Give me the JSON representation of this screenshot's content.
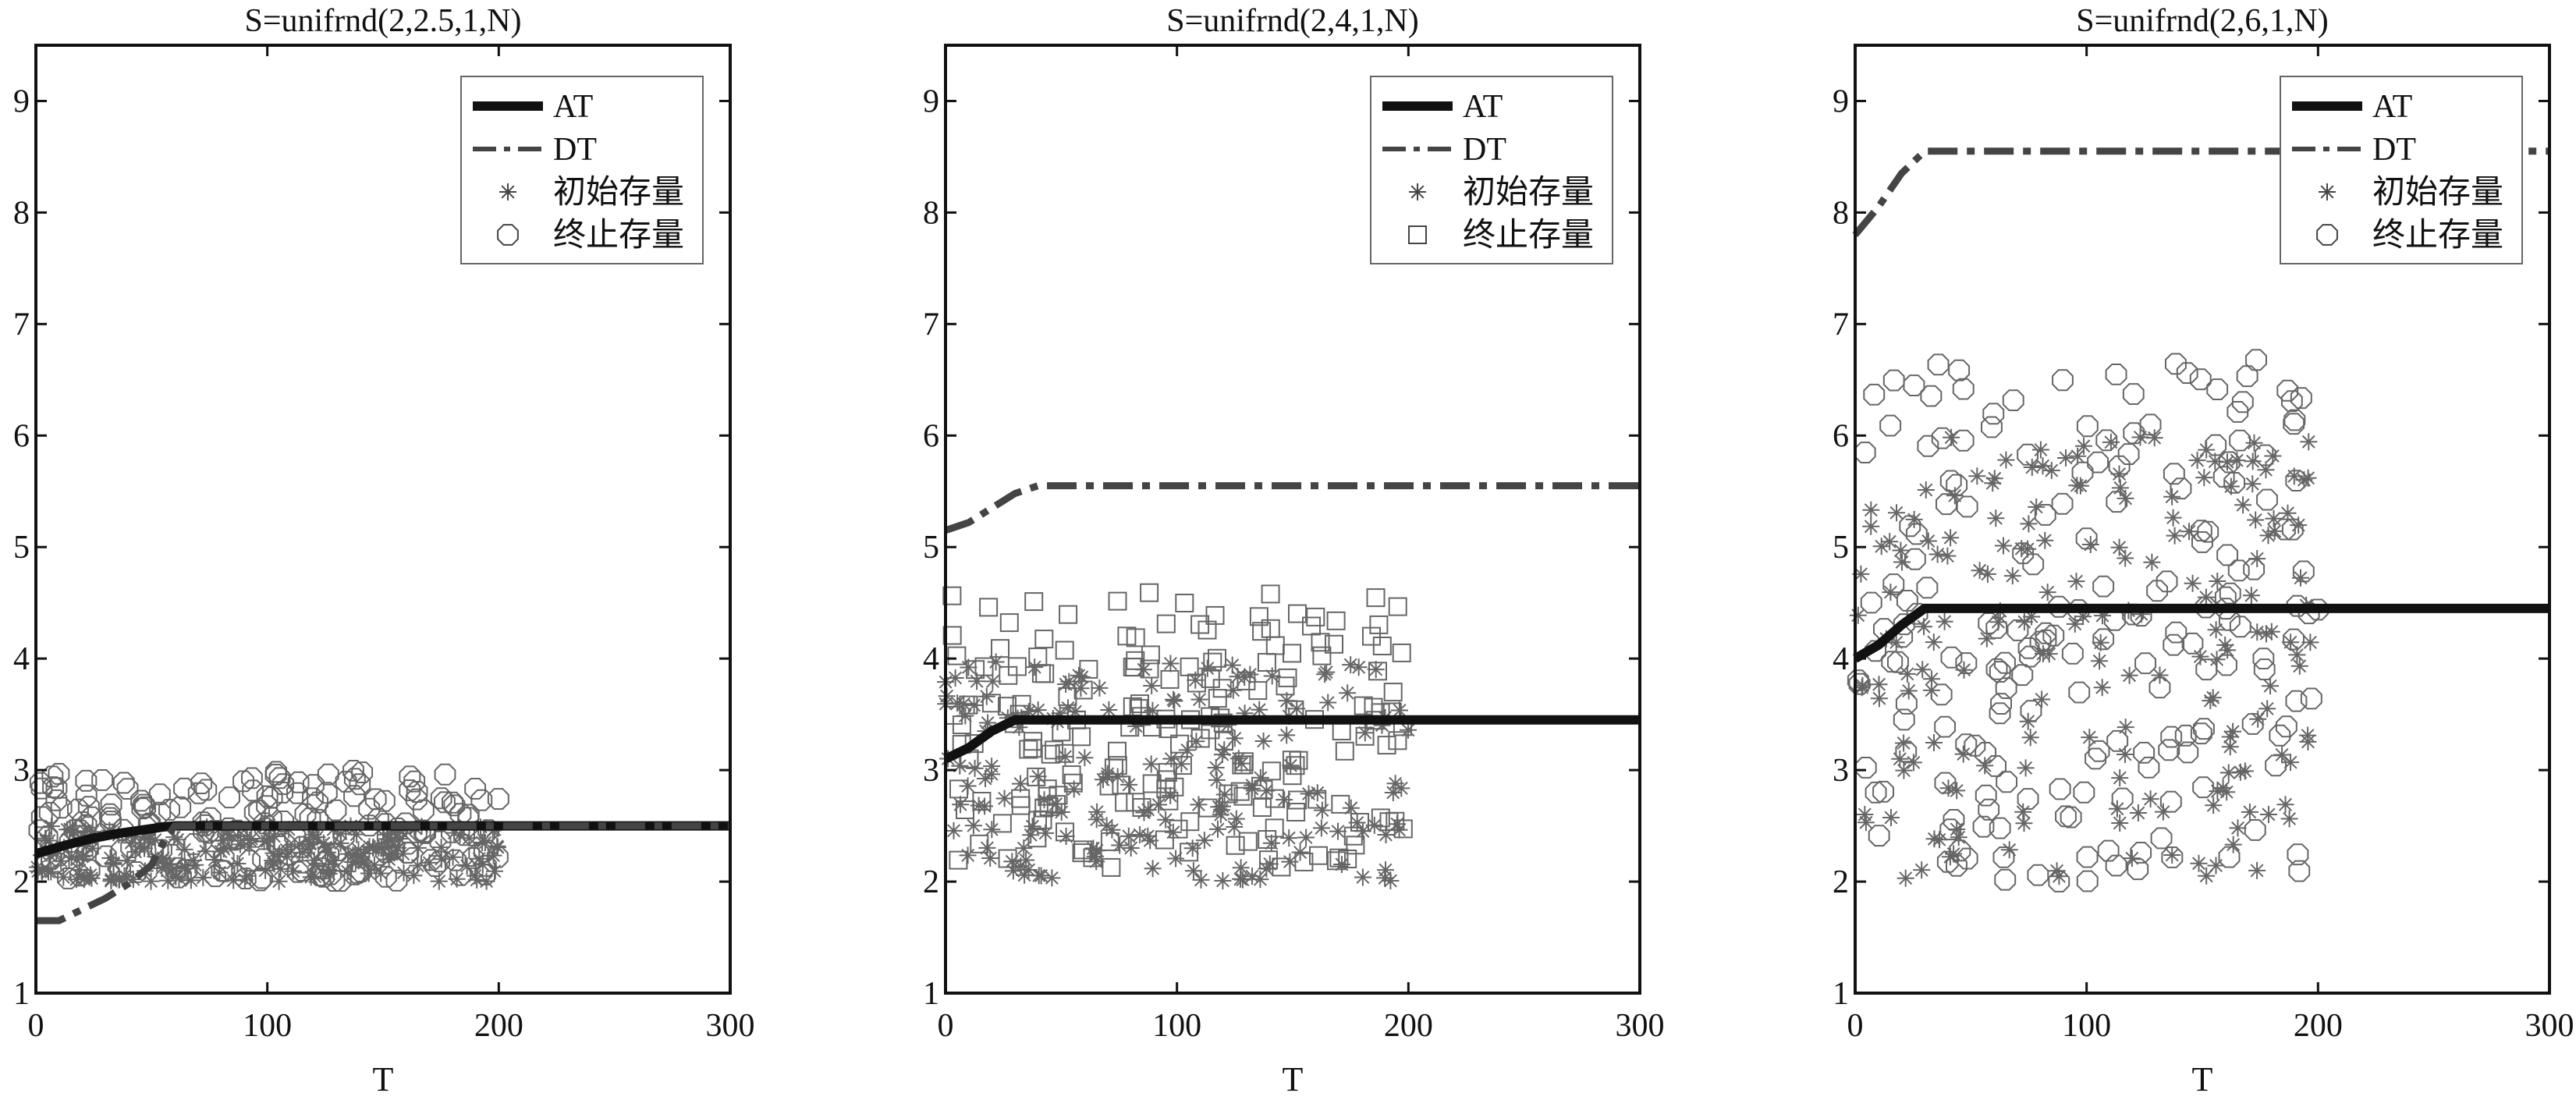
{
  "chart_data": [
    {
      "type": "scatter",
      "title": "S=unifrnd(2,2.5,1,N)",
      "xlabel": "T",
      "ylabel": "",
      "xlim": [
        0,
        300
      ],
      "ylim": [
        1,
        9.5
      ],
      "xticks": [
        0,
        100,
        200,
        300
      ],
      "yticks": [
        1,
        2,
        3,
        4,
        5,
        6,
        7,
        8,
        9
      ],
      "legend_position": "top-right",
      "legend": [
        "AT",
        "DT",
        "初始存量",
        "终止存量"
      ],
      "n_points": 200,
      "series": [
        {
          "name": "AT",
          "style": "solid-thick",
          "color": "#111111",
          "x": [
            0,
            5,
            15,
            25,
            35,
            45,
            55,
            60,
            300
          ],
          "y": [
            2.25,
            2.28,
            2.34,
            2.39,
            2.43,
            2.46,
            2.49,
            2.5,
            2.5
          ]
        },
        {
          "name": "DT",
          "style": "dash-dot",
          "color": "#444444",
          "x": [
            0,
            10,
            15,
            20,
            30,
            40,
            50,
            55,
            60,
            300
          ],
          "y": [
            1.65,
            1.65,
            1.7,
            1.75,
            1.85,
            1.98,
            2.15,
            2.35,
            2.5,
            2.5
          ]
        },
        {
          "name": "初始存量",
          "marker": "asterisk",
          "color": "#666666",
          "x_range": [
            0,
            200
          ],
          "y_range": [
            2.0,
            2.5
          ]
        },
        {
          "name": "终止存量",
          "marker": "octagon",
          "color": "#666666",
          "x_range": [
            0,
            200
          ],
          "y_range": [
            2.0,
            3.0
          ]
        }
      ]
    },
    {
      "type": "scatter",
      "title": "S=unifrnd(2,4,1,N)",
      "xlabel": "T",
      "ylabel": "",
      "xlim": [
        0,
        300
      ],
      "ylim": [
        1,
        9.5
      ],
      "xticks": [
        0,
        100,
        200,
        300
      ],
      "yticks": [
        1,
        2,
        3,
        4,
        5,
        6,
        7,
        8,
        9
      ],
      "legend_position": "top-right",
      "legend": [
        "AT",
        "DT",
        "初始存量",
        "终止存量"
      ],
      "n_points": 200,
      "series": [
        {
          "name": "AT",
          "style": "solid-thick",
          "color": "#111111",
          "x": [
            0,
            10,
            20,
            30,
            300
          ],
          "y": [
            3.1,
            3.2,
            3.35,
            3.45,
            3.45
          ]
        },
        {
          "name": "DT",
          "style": "dash-dot",
          "color": "#444444",
          "x": [
            0,
            10,
            20,
            30,
            40,
            300
          ],
          "y": [
            5.15,
            5.22,
            5.35,
            5.48,
            5.55,
            5.55
          ]
        },
        {
          "name": "初始存量",
          "marker": "asterisk",
          "color": "#666666",
          "x_range": [
            0,
            200
          ],
          "y_range": [
            2.0,
            4.0
          ]
        },
        {
          "name": "终止存量",
          "marker": "square",
          "color": "#666666",
          "x_range": [
            0,
            200
          ],
          "y_range": [
            2.1,
            4.6
          ]
        }
      ]
    },
    {
      "type": "scatter",
      "title": "S=unifrnd(2,6,1,N)",
      "xlabel": "T",
      "ylabel": "",
      "xlim": [
        0,
        300
      ],
      "ylim": [
        1,
        9.5
      ],
      "xticks": [
        0,
        100,
        200,
        300
      ],
      "yticks": [
        1,
        2,
        3,
        4,
        5,
        6,
        7,
        8,
        9
      ],
      "legend_position": "top-right",
      "legend": [
        "AT",
        "DT",
        "初始存量",
        "终止存量"
      ],
      "n_points": 200,
      "series": [
        {
          "name": "AT",
          "style": "solid-thick",
          "color": "#111111",
          "x": [
            0,
            10,
            20,
            30,
            300
          ],
          "y": [
            4.0,
            4.12,
            4.3,
            4.45,
            4.45
          ]
        },
        {
          "name": "DT",
          "style": "dash-dot",
          "color": "#444444",
          "x": [
            0,
            10,
            20,
            30,
            300
          ],
          "y": [
            7.8,
            8.05,
            8.35,
            8.55,
            8.55
          ]
        },
        {
          "name": "初始存量",
          "marker": "asterisk",
          "color": "#666666",
          "x_range": [
            0,
            200
          ],
          "y_range": [
            2.0,
            6.0
          ]
        },
        {
          "name": "终止存量",
          "marker": "octagon",
          "color": "#666666",
          "x_range": [
            0,
            200
          ],
          "y_range": [
            2.0,
            6.7
          ]
        }
      ]
    }
  ]
}
